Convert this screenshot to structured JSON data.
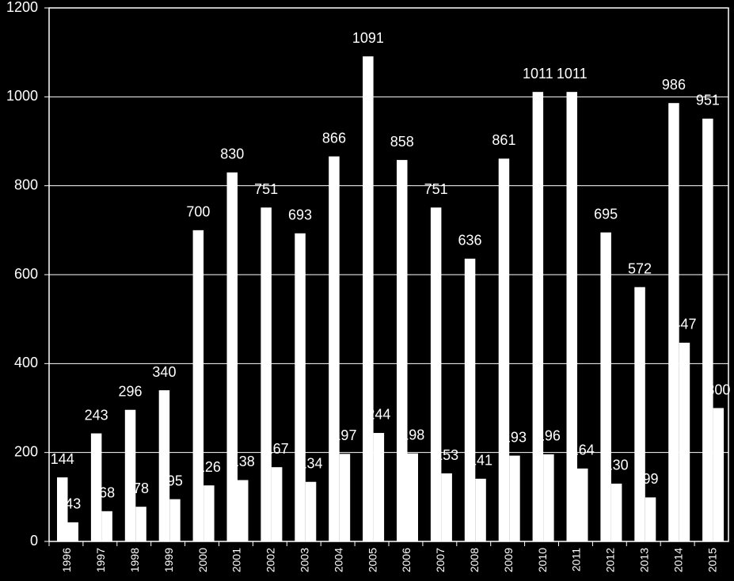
{
  "chart_data": {
    "type": "bar",
    "categories": [
      "1996",
      "1997",
      "1998",
      "1999",
      "2000",
      "2001",
      "2002",
      "2003",
      "2004",
      "2005",
      "2006",
      "2007",
      "2008",
      "2009",
      "2010",
      "2011",
      "2012",
      "2013",
      "2014",
      "2015"
    ],
    "series": [
      {
        "color": "#ffffff",
        "values": [
          144,
          243,
          296,
          340,
          700,
          830,
          751,
          693,
          866,
          1091,
          858,
          751,
          636,
          861,
          1011,
          1011,
          695,
          572,
          986,
          951
        ]
      },
      {
        "color": "#ffffff",
        "values": [
          43,
          68,
          78,
          95,
          126,
          138,
          167,
          134,
          197,
          244,
          198,
          153,
          141,
          193,
          196,
          164,
          130,
          99,
          447,
          300
        ]
      }
    ],
    "ylim": [
      0,
      1200
    ],
    "yticks": [
      0,
      200,
      400,
      600,
      800,
      1000,
      1200
    ],
    "grid": true
  }
}
